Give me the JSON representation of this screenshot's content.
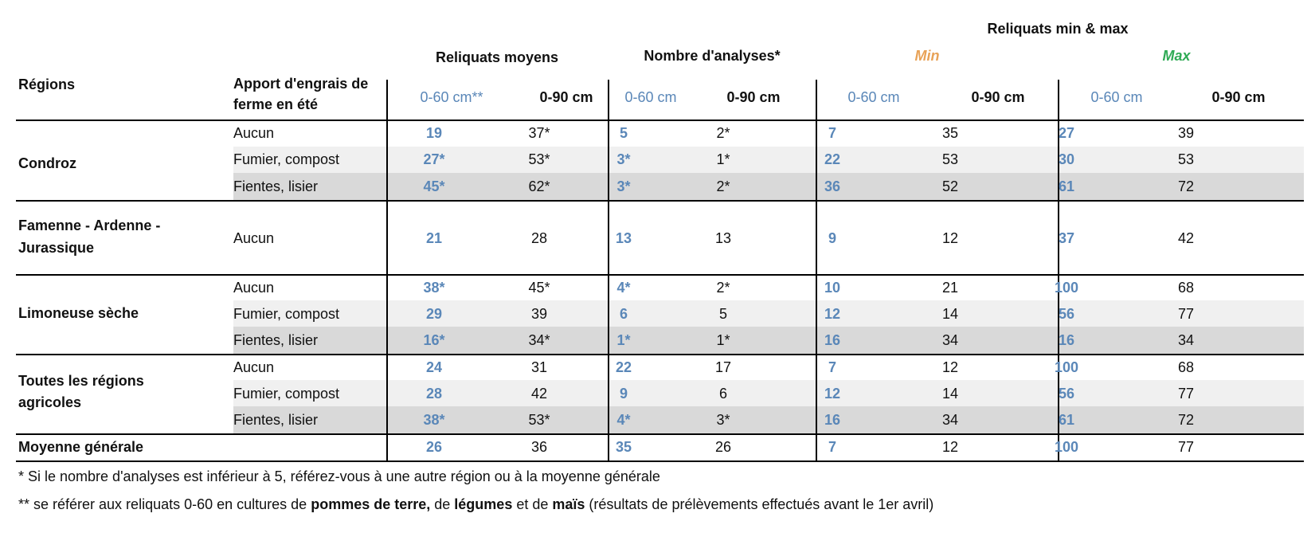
{
  "header": {
    "top_title": "Reliquats min & max",
    "regions": "Régions",
    "apport_line1": "Apport d'engrais de",
    "apport_line2": "ferme en été",
    "group_moyens": "Reliquats moyens",
    "group_analyses": "Nombre d'analyses*",
    "group_min": "Min",
    "group_max": "Max",
    "sub_060_star": "0-60 cm**",
    "sub_060": "0-60 cm",
    "sub_090": "0-90 cm"
  },
  "colors": {
    "blue": "#5a87b8",
    "orange": "#e8a257",
    "green": "#2faa55",
    "row_light": "#f0f0f0",
    "row_dark": "#d9d9d9"
  },
  "rows": [
    {
      "region": "Condroz",
      "apport": "Aucun",
      "m060": "19",
      "m090": "37*",
      "a060": "5",
      "a090": "2*",
      "mn060": "7",
      "mn090": "35",
      "mx060": "27",
      "mx090": "39"
    },
    {
      "region": "",
      "apport": "Fumier, compost",
      "m060": "27*",
      "m090": "53*",
      "a060": "3*",
      "a090": "1*",
      "mn060": "22",
      "mn090": "53",
      "mx060": "30",
      "mx090": "53"
    },
    {
      "region": "",
      "apport": "Fientes, lisier",
      "m060": "45*",
      "m090": "62*",
      "a060": "3*",
      "a090": "2*",
      "mn060": "36",
      "mn090": "52",
      "mx060": "61",
      "mx090": "72"
    },
    {
      "region": "Famenne - Ardenne - Jurassique",
      "apport": "Aucun",
      "m060": "21",
      "m090": "28",
      "a060": "13",
      "a090": "13",
      "mn060": "9",
      "mn090": "12",
      "mx060": "37",
      "mx090": "42"
    },
    {
      "region": "Limoneuse sèche",
      "apport": "Aucun",
      "m060": "38*",
      "m090": "45*",
      "a060": "4*",
      "a090": "2*",
      "mn060": "10",
      "mn090": "21",
      "mx060": "100",
      "mx090": "68"
    },
    {
      "region": "",
      "apport": "Fumier, compost",
      "m060": "29",
      "m090": "39",
      "a060": "6",
      "a090": "5",
      "mn060": "12",
      "mn090": "14",
      "mx060": "56",
      "mx090": "77"
    },
    {
      "region": "",
      "apport": "Fientes, lisier",
      "m060": "16*",
      "m090": "34*",
      "a060": "1*",
      "a090": "1*",
      "mn060": "16",
      "mn090": "34",
      "mx060": "16",
      "mx090": "34"
    },
    {
      "region": "Toutes les régions agricoles",
      "apport": "Aucun",
      "m060": "24",
      "m090": "31",
      "a060": "22",
      "a090": "17",
      "mn060": "7",
      "mn090": "12",
      "mx060": "100",
      "mx090": "68"
    },
    {
      "region": "",
      "apport": "Fumier, compost",
      "m060": "28",
      "m090": "42",
      "a060": "9",
      "a090": "6",
      "mn060": "12",
      "mn090": "14",
      "mx060": "56",
      "mx090": "77"
    },
    {
      "region": "",
      "apport": "Fientes, lisier",
      "m060": "38*",
      "m090": "53*",
      "a060": "4*",
      "a090": "3*",
      "mn060": "16",
      "mn090": "34",
      "mx060": "61",
      "mx090": "72"
    },
    {
      "region": "Moyenne générale",
      "apport": "",
      "m060": "26",
      "m090": "36",
      "a060": "35",
      "a090": "26",
      "mn060": "7",
      "mn090": "12",
      "mx060": "100",
      "mx090": "77"
    }
  ],
  "regions_display": {
    "condroz": "Condroz",
    "famenne_1": "Famenne - Ardenne -",
    "famenne_2": "Jurassique",
    "limoneuse": "Limoneuse sèche",
    "toutes_1": "Toutes les régions",
    "toutes_2": "agricoles",
    "moyenne": "Moyenne générale"
  },
  "notes": {
    "note1": "* Si le nombre d'analyses est inférieur à 5, référez-vous à une autre région ou à la moyenne générale",
    "note2_a": "** se référer aux reliquats 0-60 en cultures de ",
    "note2_b": "pommes de terre,",
    "note2_c": " de ",
    "note2_d": "légumes",
    "note2_e": " et de ",
    "note2_f": "maïs",
    "note2_g": " (résultats de prélèvements effectués avant le 1er avril)"
  }
}
